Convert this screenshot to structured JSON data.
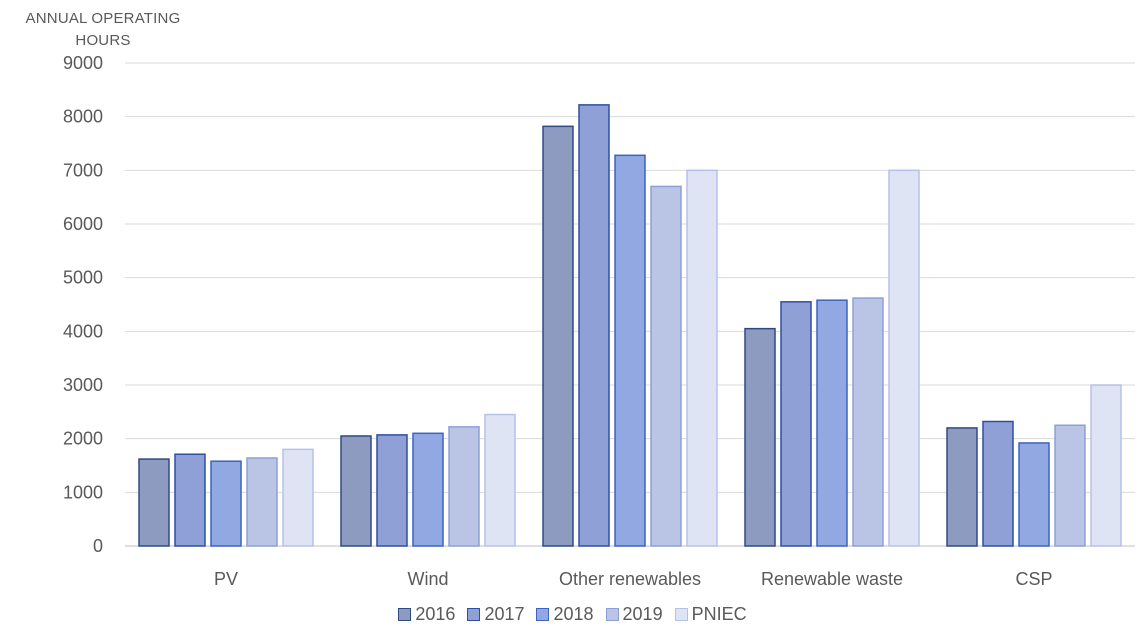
{
  "chart_data": {
    "type": "bar",
    "title": "",
    "xlabel": "",
    "ylabel": "ANNUAL OPERATING HOURS",
    "categories": [
      "PV",
      "Wind",
      "Other renewables",
      "Renewable waste",
      "CSP"
    ],
    "ylim": [
      0,
      9000
    ],
    "yticks": [
      0,
      1000,
      2000,
      3000,
      4000,
      5000,
      6000,
      7000,
      8000,
      9000
    ],
    "grid": true,
    "legend_position": "bottom",
    "series": [
      {
        "name": "2016",
        "values": [
          1620,
          2050,
          7820,
          4050,
          2200
        ],
        "fill": "#8c9bbf",
        "stroke": "#2e4a84"
      },
      {
        "name": "2017",
        "values": [
          1710,
          2070,
          8220,
          4550,
          2320
        ],
        "fill": "#8fa0d6",
        "stroke": "#2e4fa0"
      },
      {
        "name": "2018",
        "values": [
          1580,
          2100,
          7280,
          4580,
          1920
        ],
        "fill": "#92a8e3",
        "stroke": "#3b63bf"
      },
      {
        "name": "2019",
        "values": [
          1640,
          2220,
          6700,
          4620,
          2250
        ],
        "fill": "#bac5e6",
        "stroke": "#8e9fd6"
      },
      {
        "name": "PNIEC",
        "values": [
          1800,
          2450,
          7000,
          7000,
          3000
        ],
        "fill": "#dfe4f4",
        "stroke": "#b5c1e6"
      }
    ]
  }
}
